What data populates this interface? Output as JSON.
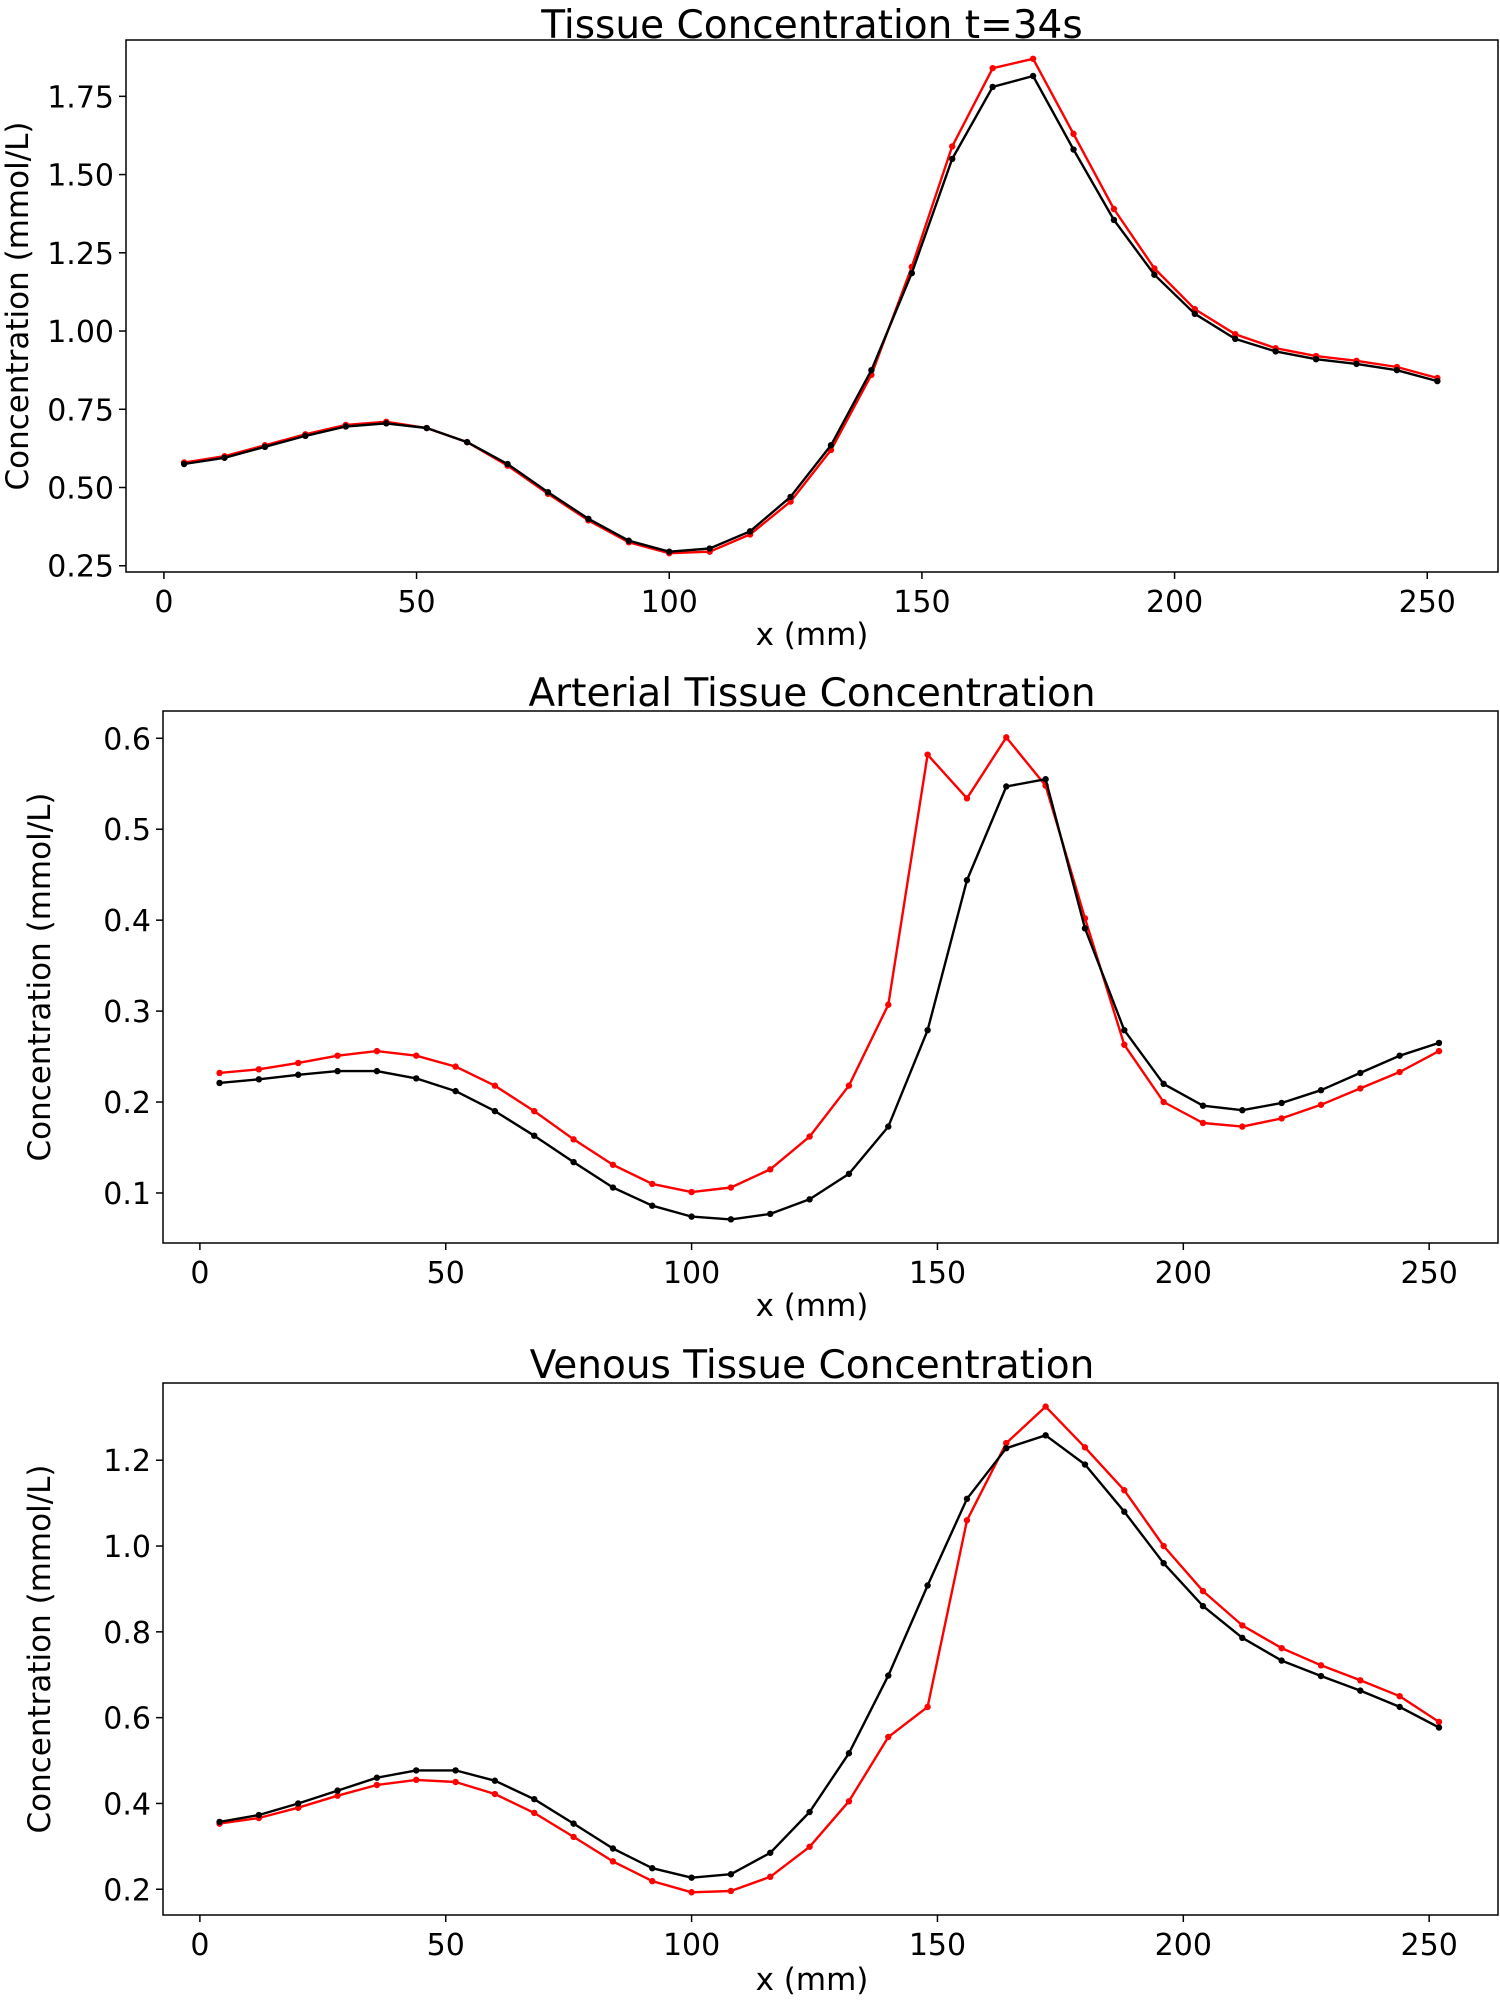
{
  "colors": {
    "series_red": "#ff0000",
    "series_black": "#000000",
    "background": "#ffffff"
  },
  "chart_data": [
    {
      "type": "line",
      "title": "Tissue Concentration t=34s",
      "xlabel": "x (mm)",
      "ylabel": "Concentration (mmol/L)",
      "xlim": [
        -7.5,
        264
      ],
      "ylim": [
        0.23,
        1.93
      ],
      "xticks": [
        0,
        50,
        100,
        150,
        200,
        250
      ],
      "xtick_labels": [
        "0",
        "50",
        "100",
        "150",
        "200",
        "250"
      ],
      "yticks": [
        0.25,
        0.5,
        0.75,
        1.0,
        1.25,
        1.5,
        1.75
      ],
      "ytick_labels": [
        "0.25",
        "0.50",
        "0.75",
        "1.00",
        "1.25",
        "1.50",
        "1.75"
      ],
      "grid": false,
      "x": [
        4,
        12,
        20,
        28,
        36,
        44,
        52,
        60,
        68,
        76,
        84,
        92,
        100,
        108,
        116,
        124,
        132,
        140,
        148,
        156,
        164,
        172,
        180,
        188,
        196,
        204,
        212,
        220,
        228,
        236,
        244,
        252
      ],
      "series": [
        {
          "color": "#ff0000",
          "marker": "dot",
          "values": [
            0.58,
            0.6,
            0.635,
            0.67,
            0.7,
            0.71,
            0.69,
            0.645,
            0.57,
            0.48,
            0.395,
            0.325,
            0.29,
            0.295,
            0.35,
            0.455,
            0.62,
            0.86,
            1.205,
            1.59,
            1.84,
            1.87,
            1.63,
            1.39,
            1.2,
            1.07,
            0.99,
            0.945,
            0.92,
            0.905,
            0.885,
            0.85
          ]
        },
        {
          "color": "#000000",
          "marker": "dot",
          "values": [
            0.575,
            0.595,
            0.63,
            0.665,
            0.695,
            0.705,
            0.69,
            0.645,
            0.575,
            0.485,
            0.4,
            0.33,
            0.295,
            0.305,
            0.36,
            0.47,
            0.635,
            0.875,
            1.185,
            1.55,
            1.78,
            1.815,
            1.58,
            1.355,
            1.18,
            1.055,
            0.975,
            0.935,
            0.91,
            0.895,
            0.875,
            0.84
          ]
        }
      ]
    },
    {
      "type": "line",
      "title": "Arterial Tissue Concentration",
      "xlabel": "x (mm)",
      "ylabel": "Concentration (mmol/L)",
      "xlim": [
        -7.5,
        264
      ],
      "ylim": [
        0.045,
        0.63
      ],
      "xticks": [
        0,
        50,
        100,
        150,
        200,
        250
      ],
      "xtick_labels": [
        "0",
        "50",
        "100",
        "150",
        "200",
        "250"
      ],
      "yticks": [
        0.1,
        0.2,
        0.3,
        0.4,
        0.5,
        0.6
      ],
      "ytick_labels": [
        "0.1",
        "0.2",
        "0.3",
        "0.4",
        "0.5",
        "0.6"
      ],
      "grid": false,
      "x": [
        4,
        12,
        20,
        28,
        36,
        44,
        52,
        60,
        68,
        76,
        84,
        92,
        100,
        108,
        116,
        124,
        132,
        140,
        148,
        156,
        164,
        172,
        180,
        188,
        196,
        204,
        212,
        220,
        228,
        236,
        244,
        252
      ],
      "series": [
        {
          "color": "#ff0000",
          "marker": "dot",
          "values": [
            0.232,
            0.236,
            0.243,
            0.251,
            0.256,
            0.251,
            0.239,
            0.218,
            0.19,
            0.159,
            0.131,
            0.11,
            0.101,
            0.106,
            0.126,
            0.162,
            0.218,
            0.307,
            0.582,
            0.534,
            0.601,
            0.548,
            0.402,
            0.263,
            0.2,
            0.177,
            0.173,
            0.182,
            0.197,
            0.215,
            0.233,
            0.256
          ]
        },
        {
          "color": "#000000",
          "marker": "dot",
          "values": [
            0.221,
            0.225,
            0.23,
            0.234,
            0.234,
            0.226,
            0.212,
            0.19,
            0.163,
            0.134,
            0.106,
            0.086,
            0.074,
            0.071,
            0.077,
            0.093,
            0.121,
            0.173,
            0.279,
            0.444,
            0.547,
            0.555,
            0.391,
            0.279,
            0.22,
            0.196,
            0.191,
            0.199,
            0.213,
            0.232,
            0.251,
            0.265
          ]
        }
      ]
    },
    {
      "type": "line",
      "title": "Venous Tissue Concentration",
      "xlabel": "x (mm)",
      "ylabel": "Concentration (mmol/L)",
      "xlim": [
        -7.5,
        264
      ],
      "ylim": [
        0.14,
        1.38
      ],
      "xticks": [
        0,
        50,
        100,
        150,
        200,
        250
      ],
      "xtick_labels": [
        "0",
        "50",
        "100",
        "150",
        "200",
        "250"
      ],
      "yticks": [
        0.2,
        0.4,
        0.6,
        0.8,
        1.0,
        1.2
      ],
      "ytick_labels": [
        "0.2",
        "0.4",
        "0.6",
        "0.8",
        "1.0",
        "1.2"
      ],
      "grid": false,
      "x": [
        4,
        12,
        20,
        28,
        36,
        44,
        52,
        60,
        68,
        76,
        84,
        92,
        100,
        108,
        116,
        124,
        132,
        140,
        148,
        156,
        164,
        172,
        180,
        188,
        196,
        204,
        212,
        220,
        228,
        236,
        244,
        252
      ],
      "series": [
        {
          "color": "#ff0000",
          "marker": "dot",
          "values": [
            0.353,
            0.366,
            0.39,
            0.418,
            0.443,
            0.455,
            0.45,
            0.422,
            0.378,
            0.322,
            0.265,
            0.219,
            0.193,
            0.196,
            0.229,
            0.299,
            0.405,
            0.555,
            0.625,
            1.06,
            1.24,
            1.325,
            1.23,
            1.13,
            1.0,
            0.895,
            0.815,
            0.762,
            0.722,
            0.687,
            0.65,
            0.59
          ]
        },
        {
          "color": "#000000",
          "marker": "dot",
          "values": [
            0.357,
            0.373,
            0.4,
            0.43,
            0.46,
            0.477,
            0.477,
            0.453,
            0.41,
            0.353,
            0.295,
            0.249,
            0.227,
            0.235,
            0.285,
            0.38,
            0.517,
            0.698,
            0.908,
            1.11,
            1.228,
            1.258,
            1.19,
            1.08,
            0.96,
            0.86,
            0.786,
            0.733,
            0.697,
            0.663,
            0.625,
            0.577
          ]
        }
      ]
    }
  ]
}
